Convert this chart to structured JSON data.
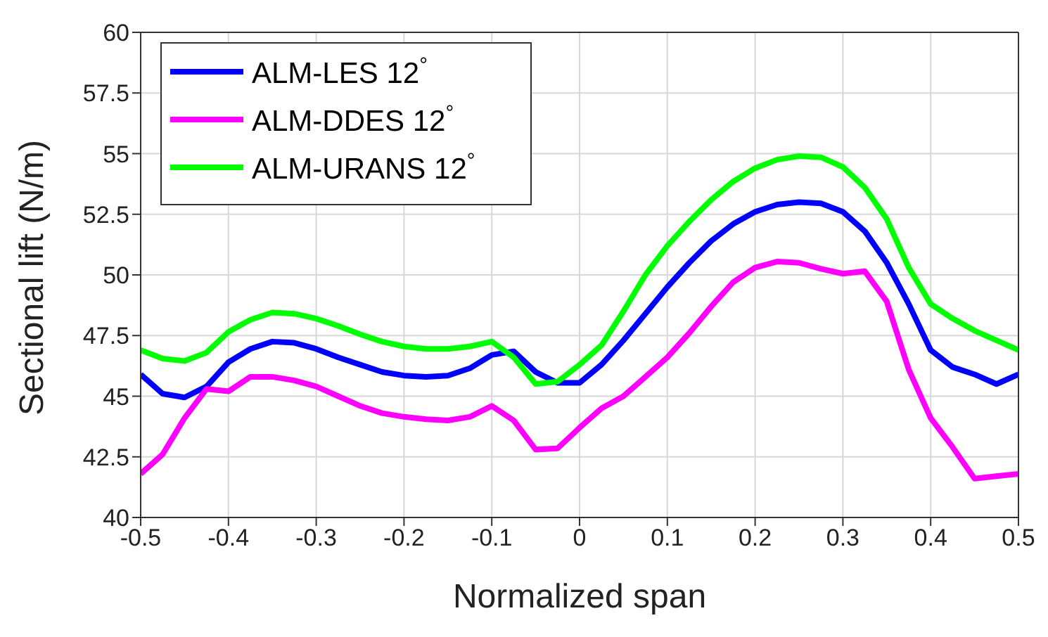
{
  "chart_data": {
    "type": "line",
    "xlabel": "Normalized span",
    "ylabel": "Sectional lift (N/m)",
    "x": [
      -0.5,
      -0.475,
      -0.45,
      -0.425,
      -0.4,
      -0.375,
      -0.35,
      -0.325,
      -0.3,
      -0.275,
      -0.25,
      -0.225,
      -0.2,
      -0.175,
      -0.15,
      -0.125,
      -0.1,
      -0.075,
      -0.05,
      -0.025,
      0,
      0.025,
      0.05,
      0.075,
      0.1,
      0.125,
      0.15,
      0.175,
      0.2,
      0.225,
      0.25,
      0.275,
      0.3,
      0.325,
      0.35,
      0.375,
      0.4,
      0.425,
      0.45,
      0.475,
      0.5
    ],
    "series": [
      {
        "name": "ALM-LES 12$^{°}$",
        "color": "#0000ff",
        "values": [
          45.9,
          45.1,
          44.95,
          45.4,
          46.4,
          46.95,
          47.25,
          47.2,
          46.95,
          46.6,
          46.3,
          46.0,
          45.85,
          45.8,
          45.85,
          46.15,
          46.7,
          46.85,
          46.0,
          45.55,
          45.55,
          46.3,
          47.3,
          48.4,
          49.5,
          50.5,
          51.4,
          52.1,
          52.6,
          52.9,
          53.0,
          52.95,
          52.6,
          51.8,
          50.5,
          48.8,
          46.9,
          46.2,
          45.9,
          45.5,
          45.9
        ]
      },
      {
        "name": "ALM-DDES 12$^{°}$",
        "color": "#ff00ff",
        "values": [
          41.8,
          42.6,
          44.1,
          45.3,
          45.2,
          45.8,
          45.8,
          45.65,
          45.4,
          45.0,
          44.6,
          44.3,
          44.15,
          44.05,
          44.0,
          44.15,
          44.6,
          44.0,
          42.8,
          42.85,
          43.7,
          44.5,
          45.0,
          45.8,
          46.6,
          47.6,
          48.7,
          49.7,
          50.3,
          50.55,
          50.5,
          50.25,
          50.05,
          50.15,
          48.9,
          46.1,
          44.1,
          42.9,
          41.6,
          41.7,
          41.8
        ]
      },
      {
        "name": "ALM-URANS 12$^{°}$",
        "color": "#00ff00",
        "values": [
          46.9,
          46.55,
          46.45,
          46.8,
          47.65,
          48.15,
          48.45,
          48.4,
          48.2,
          47.9,
          47.55,
          47.25,
          47.05,
          46.95,
          46.95,
          47.05,
          47.25,
          46.6,
          45.5,
          45.6,
          46.3,
          47.1,
          48.5,
          50.0,
          51.2,
          52.2,
          53.1,
          53.85,
          54.4,
          54.75,
          54.9,
          54.85,
          54.45,
          53.6,
          52.3,
          50.3,
          48.8,
          48.2,
          47.7,
          47.3,
          46.9
        ]
      }
    ],
    "xlim": [
      -0.5,
      0.5
    ],
    "xticks": [
      -0.5,
      -0.4,
      -0.3,
      -0.2,
      -0.1,
      0,
      0.1,
      0.2,
      0.3,
      0.4,
      0.5
    ],
    "ylim": [
      40,
      60
    ],
    "yticks": [
      40,
      42.5,
      45,
      47.5,
      50,
      52.5,
      55,
      57.5,
      60
    ],
    "grid": true,
    "legend": "top left",
    "marker": "none",
    "line_style": "solid"
  }
}
